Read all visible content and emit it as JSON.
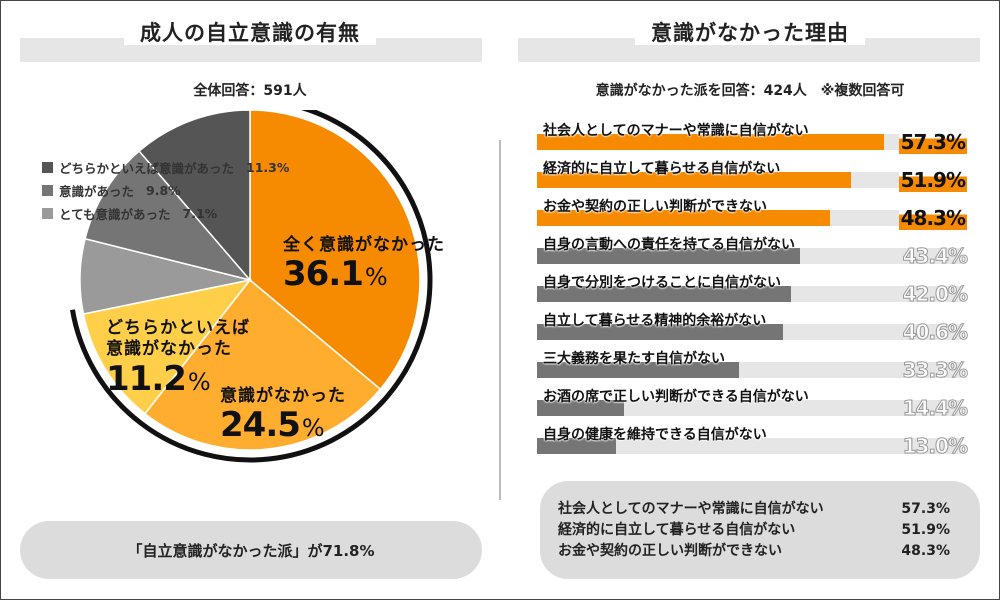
{
  "colors": {
    "orange": "#f68a00",
    "light_orange": "#ffad2f",
    "yellow": "#ffcf4a",
    "gray1": "#9a9a9a",
    "gray2": "#757575",
    "gray3": "#555555",
    "track": "#e6e6e6"
  },
  "left": {
    "title": "成人の自立意識の有無",
    "subhead": "全体回答：591人",
    "summary": "「自立意識がなかった派」が71.8%"
  },
  "right": {
    "title": "意識がなかった理由",
    "subhead": "意識がなかった派を回答：424人　※複数回答可",
    "summary": [
      {
        "label": "社会人としてのマナーや常識に自信がない",
        "value": "57.3%"
      },
      {
        "label": "経済的に自立して暮らせる自信がない",
        "value": "51.9%"
      },
      {
        "label": "お金や契約の正しい判断ができない",
        "value": "48.3%"
      }
    ]
  },
  "chart_data": [
    {
      "type": "pie",
      "title": "成人の自立意識の有無",
      "respondents": "全体回答：591人",
      "categories": [
        "全く意識がなかった",
        "意識がなかった",
        "どちらかといえば意識がなかった",
        "とても意識があった",
        "意識があった",
        "どちらかといえば意識があった"
      ],
      "values": [
        36.1,
        24.5,
        11.2,
        7.1,
        9.8,
        11.3
      ],
      "labels": [
        "36.1%",
        "24.5%",
        "11.2%",
        "7.1%",
        "9.8%",
        "11.3%"
      ],
      "colors": [
        "#f68a00",
        "#ffad2f",
        "#ffcf4a",
        "#9a9a9a",
        "#757575",
        "#555555"
      ],
      "legend": [
        {
          "label": "どちらかといえば意識があった",
          "pct": "11.3%",
          "color": "#555555"
        },
        {
          "label": "意識があった",
          "pct": "9.8%",
          "color": "#757575"
        },
        {
          "label": "とても意識があった",
          "pct": "7.1%",
          "color": "#9a9a9a"
        }
      ],
      "caption_lines": {
        "c0": "全く意識がなかった",
        "c1": "意識がなかった",
        "c2a": "どちらかといえば",
        "c2b": "意識がなかった"
      },
      "big_values": {
        "c0": "36.1",
        "c1": "24.5",
        "c2": "11.2"
      },
      "pct_sign": "%"
    },
    {
      "type": "bar",
      "title": "意識がなかった理由",
      "respondents": "意識がなかった派を回答：424人　※複数回答可",
      "xlim": [
        0,
        70
      ],
      "categories": [
        "社会人としてのマナーや常識に自信がない",
        "経済的に自立して暮らせる自信がない",
        "お金や契約の正しい判断ができない",
        "自身の言動への責任を持てる自信がない",
        "自身で分別をつけることに自信がない",
        "自立して暮らせる精神的余裕がない",
        "三大義務を果たす自信がない",
        "お酒の席で正しい判断ができる自信がない",
        "自身の健康を維持できる自信がない"
      ],
      "values": [
        57.3,
        51.9,
        48.3,
        43.4,
        42.0,
        40.6,
        33.3,
        14.4,
        13.0
      ],
      "labels": [
        "57.3%",
        "51.9%",
        "48.3%",
        "43.4%",
        "42.0%",
        "40.6%",
        "33.3%",
        "14.4%",
        "13.0%"
      ],
      "highlight_count": 3
    }
  ]
}
